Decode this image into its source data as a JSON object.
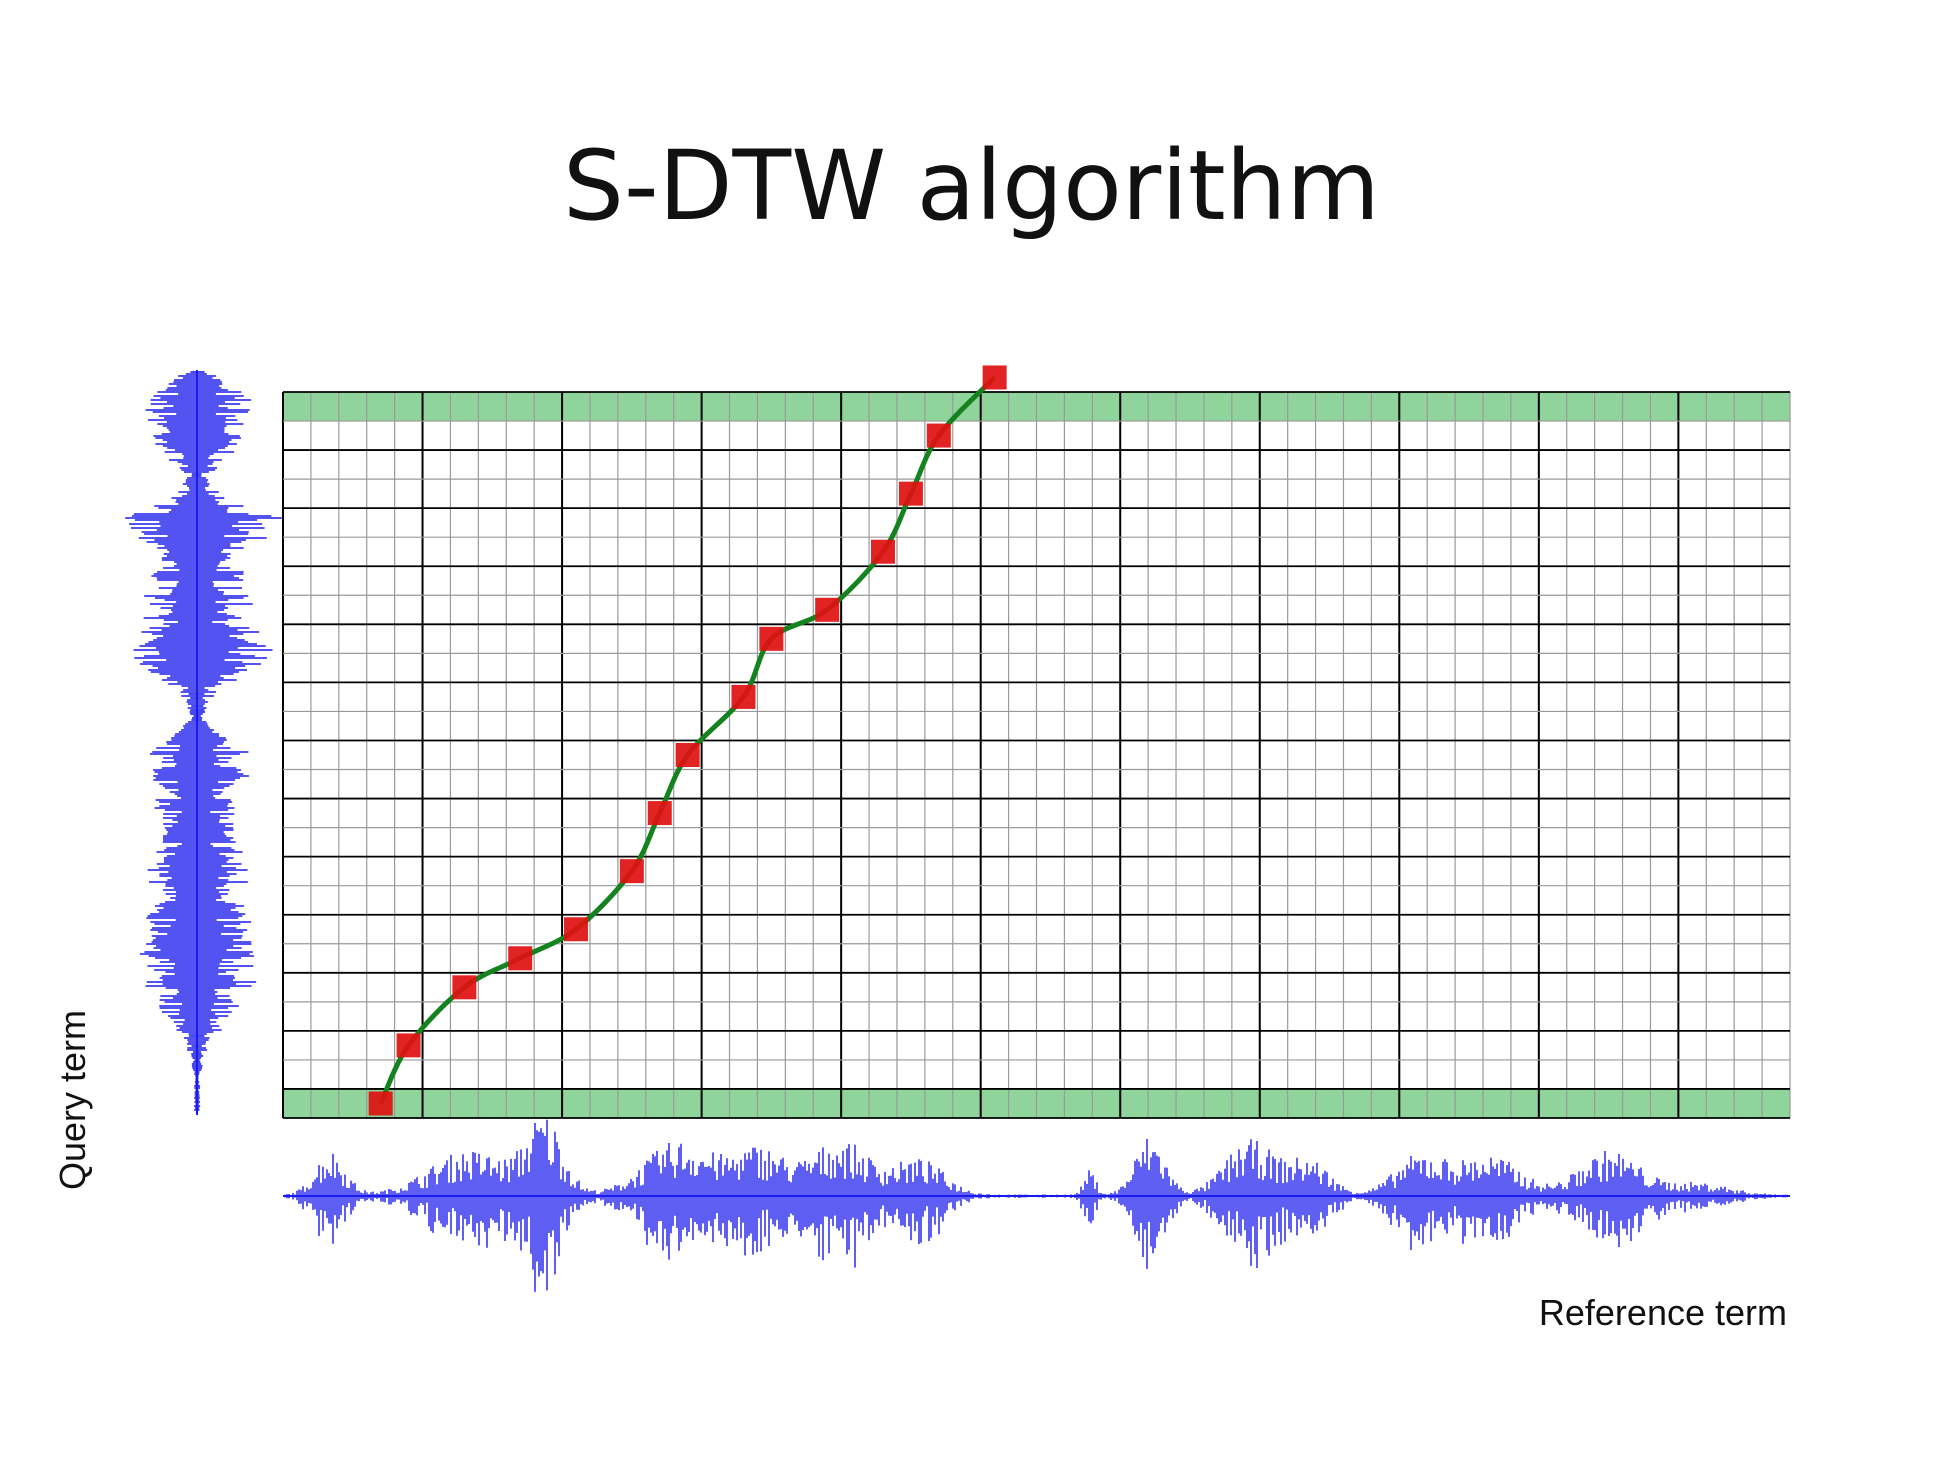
{
  "title": "S-DTW algorithm",
  "query_label": "Query term",
  "reference_label": "Reference term",
  "colors": {
    "band": "#8fd49b",
    "path": "#14821e",
    "match": "#e01010",
    "waveform": "#1a1aee",
    "grid_major": "#000000",
    "grid_minor": "#9a9a9a"
  },
  "grid": {
    "columns": 54,
    "rows": 25,
    "major_every": 5
  },
  "warping_path": [
    [
      3,
      0
    ],
    [
      4,
      2
    ],
    [
      6,
      4
    ],
    [
      8,
      5
    ],
    [
      10,
      6
    ],
    [
      12,
      8
    ],
    [
      13,
      10
    ],
    [
      14,
      12
    ],
    [
      16,
      14
    ],
    [
      17,
      16
    ],
    [
      19,
      17
    ],
    [
      21,
      19
    ],
    [
      22,
      21
    ],
    [
      23,
      23
    ],
    [
      25,
      25
    ]
  ]
}
